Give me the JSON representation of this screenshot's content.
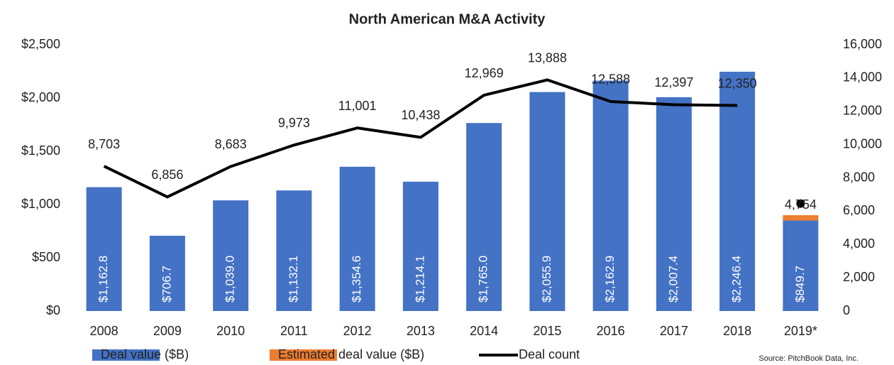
{
  "chart_data": {
    "type": "bar_line",
    "title": "North American M&A Activity",
    "source": "Source: PitchBook Data, Inc.",
    "categories": [
      "2008",
      "2009",
      "2010",
      "2011",
      "2012",
      "2013",
      "2014",
      "2015",
      "2016",
      "2017",
      "2018",
      "2019*"
    ],
    "series": [
      {
        "name": "Deal value ($B)",
        "color": "#4472c4",
        "kind": "bar",
        "values": [
          1162.8,
          706.7,
          1039.0,
          1132.1,
          1354.6,
          1214.1,
          1765.0,
          2055.9,
          2162.9,
          2007.4,
          2246.4,
          849.7
        ],
        "value_labels": [
          "$1,162.8",
          "$706.7",
          "$1,039.0",
          "$1,132.1",
          "$1,354.6",
          "$1,214.1",
          "$1,765.0",
          "$2,055.9",
          "$2,162.9",
          "$2,007.4",
          "$2,246.4",
          "$849.7"
        ]
      },
      {
        "name": "Estimated deal value ($B)",
        "color": "#ed7d31",
        "kind": "stack",
        "values": [
          null,
          null,
          null,
          null,
          null,
          null,
          null,
          null,
          null,
          null,
          null,
          50
        ]
      },
      {
        "name": "Deal count",
        "color": "#000000",
        "kind": "line",
        "axis": "y2",
        "values": [
          8703,
          6856,
          8683,
          9973,
          11001,
          10438,
          12969,
          13888,
          12588,
          12397,
          12350,
          null
        ],
        "value_labels": [
          "8,703",
          "6,856",
          "8,683",
          "9,973",
          "11,001",
          "10,438",
          "12,969",
          "13,888",
          "12,588",
          "12,397",
          "12,350",
          null
        ]
      },
      {
        "color": "#000000",
        "kind": "dot",
        "axis": "y2",
        "values": [
          null,
          null,
          null,
          null,
          null,
          null,
          null,
          null,
          null,
          null,
          null,
          4754
        ],
        "value_labels": [
          null,
          null,
          null,
          null,
          null,
          null,
          null,
          null,
          null,
          null,
          null,
          "4,754"
        ]
      }
    ],
    "ylim": [
      0,
      2500
    ],
    "yticks": [
      {
        "value": 0,
        "label": "$0"
      },
      {
        "value": 500,
        "label": "$500"
      },
      {
        "value": 1000,
        "label": "$1,000"
      },
      {
        "value": 1500,
        "label": "$1,500"
      },
      {
        "value": 2000,
        "label": "$2,000"
      },
      {
        "value": 2500,
        "label": "$2,500"
      }
    ],
    "y2lim": [
      0,
      16000
    ],
    "y2ticks": [
      0,
      {
        "value": 2000,
        "label": "2,000"
      },
      {
        "value": 4000,
        "label": "4,000"
      },
      {
        "value": 6000,
        "label": "6,000"
      },
      {
        "value": 8000,
        "label": "8,000"
      },
      {
        "value": 10000,
        "label": "10,000"
      },
      {
        "value": 12000,
        "label": "12,000"
      },
      {
        "value": 14000,
        "label": "14,000"
      },
      {
        "value": 16000,
        "label": "16,000"
      }
    ],
    "legend": "bottom"
  }
}
